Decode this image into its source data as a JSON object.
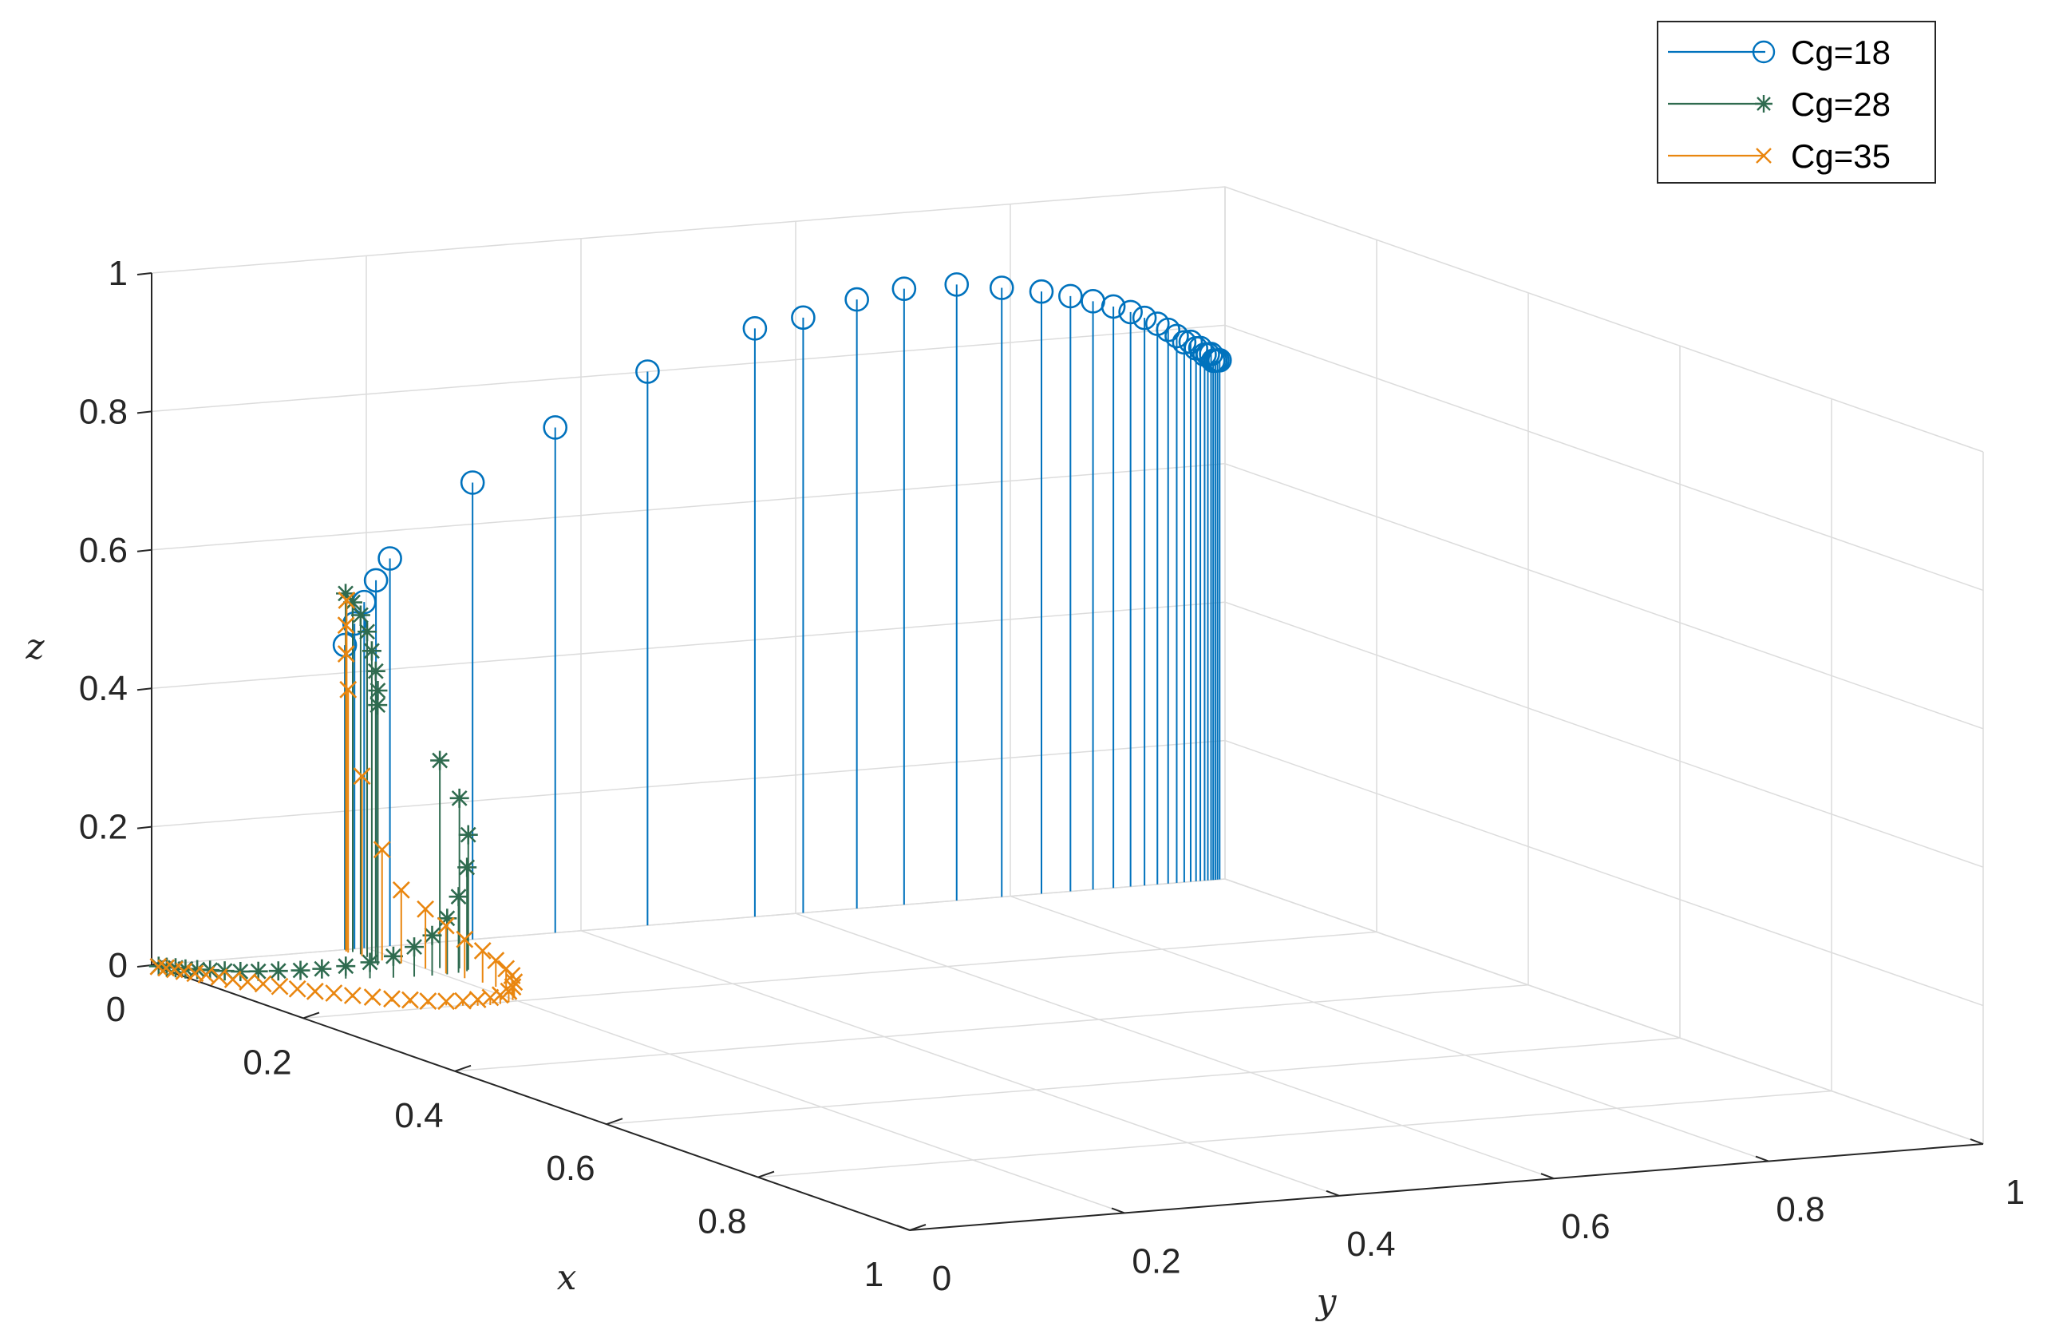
{
  "chart_data": {
    "type": "stem3",
    "xlabel": "x",
    "ylabel": "y",
    "zlabel": "z",
    "xlim": [
      0,
      1
    ],
    "ylim": [
      0,
      1
    ],
    "zlim": [
      0,
      1
    ],
    "x_ticks": [
      "0",
      "0.2",
      "0.4",
      "0.6",
      "0.8",
      "1"
    ],
    "y_ticks": [
      "0",
      "0.2",
      "0.4",
      "0.6",
      "0.8",
      "1"
    ],
    "z_ticks": [
      "0",
      "0.2",
      "0.4",
      "0.6",
      "0.8",
      "1"
    ],
    "grid": true,
    "legend_position": "top-right",
    "series": [
      {
        "name": "Cg=18",
        "color": "#0072BD",
        "marker": "circle",
        "points": [
          [
            0.0,
            0.18,
            0.44
          ],
          [
            0.0,
            0.189,
            0.47
          ],
          [
            0.0,
            0.198,
            0.5
          ],
          [
            0.0,
            0.209,
            0.53
          ],
          [
            0.0,
            0.222,
            0.56
          ],
          [
            0.0,
            0.299,
            0.66
          ],
          [
            0.0,
            0.376,
            0.73
          ],
          [
            0.0,
            0.462,
            0.8
          ],
          [
            0.0,
            0.562,
            0.85
          ],
          [
            0.0,
            0.607,
            0.86
          ],
          [
            0.0,
            0.657,
            0.88
          ],
          [
            0.0,
            0.701,
            0.89
          ],
          [
            0.0,
            0.75,
            0.89
          ],
          [
            0.0,
            0.792,
            0.88
          ],
          [
            0.0,
            0.829,
            0.87
          ],
          [
            0.0,
            0.856,
            0.86
          ],
          [
            0.0,
            0.877,
            0.85
          ],
          [
            0.0,
            0.896,
            0.84
          ],
          [
            0.0,
            0.912,
            0.83
          ],
          [
            0.0,
            0.925,
            0.82
          ],
          [
            0.0,
            0.937,
            0.81
          ],
          [
            0.0,
            0.947,
            0.8
          ],
          [
            0.0,
            0.955,
            0.79
          ],
          [
            0.0,
            0.962,
            0.78
          ],
          [
            0.0,
            0.968,
            0.78
          ],
          [
            0.0,
            0.973,
            0.77
          ],
          [
            0.0,
            0.977,
            0.77
          ],
          [
            0.0,
            0.981,
            0.76
          ],
          [
            0.0,
            0.984,
            0.76
          ],
          [
            0.0,
            0.987,
            0.76
          ],
          [
            0.0,
            0.989,
            0.75
          ],
          [
            0.0,
            0.991,
            0.75
          ],
          [
            0.0,
            0.993,
            0.75
          ],
          [
            0.0,
            0.995,
            0.75
          ]
        ]
      },
      {
        "name": "Cg=28",
        "color": "#2F6B4F",
        "marker": "asterisk",
        "points": [
          [
            0.005,
            0.003,
            0.0
          ],
          [
            0.01,
            0.007,
            0.0
          ],
          [
            0.016,
            0.011,
            0.001
          ],
          [
            0.022,
            0.016,
            0.001
          ],
          [
            0.029,
            0.022,
            0.002
          ],
          [
            0.036,
            0.029,
            0.003
          ],
          [
            0.044,
            0.037,
            0.004
          ],
          [
            0.052,
            0.046,
            0.005
          ],
          [
            0.06,
            0.057,
            0.007
          ],
          [
            0.068,
            0.07,
            0.009
          ],
          [
            0.076,
            0.085,
            0.011
          ],
          [
            0.083,
            0.1,
            0.014
          ],
          [
            0.089,
            0.118,
            0.018
          ],
          [
            0.094,
            0.137,
            0.023
          ],
          [
            0.098,
            0.156,
            0.031
          ],
          [
            0.1,
            0.174,
            0.043
          ],
          [
            0.101,
            0.19,
            0.058
          ],
          [
            0.101,
            0.204,
            0.081
          ],
          [
            0.099,
            0.216,
            0.11
          ],
          [
            0.096,
            0.226,
            0.15
          ],
          [
            0.092,
            0.23,
            0.195
          ],
          [
            0.086,
            0.226,
            0.246
          ],
          [
            0.08,
            0.212,
            0.3
          ],
          [
            0.056,
            0.171,
            0.376
          ],
          [
            0.052,
            0.174,
            0.395
          ],
          [
            0.045,
            0.177,
            0.42
          ],
          [
            0.037,
            0.179,
            0.446
          ],
          [
            0.028,
            0.181,
            0.47
          ],
          [
            0.018,
            0.182,
            0.49
          ],
          [
            0.009,
            0.181,
            0.505
          ],
          [
            0.001,
            0.18,
            0.515
          ]
        ]
      },
      {
        "name": "Cg=35",
        "color": "#E9860F",
        "marker": "cross",
        "points": [
          [
            0.006,
            0.002,
            0.0
          ],
          [
            0.012,
            0.005,
            0.0
          ],
          [
            0.019,
            0.008,
            0.0
          ],
          [
            0.027,
            0.011,
            0.0
          ],
          [
            0.036,
            0.015,
            0.0
          ],
          [
            0.045,
            0.019,
            0.001
          ],
          [
            0.055,
            0.024,
            0.001
          ],
          [
            0.066,
            0.029,
            0.001
          ],
          [
            0.077,
            0.035,
            0.001
          ],
          [
            0.089,
            0.041,
            0.002
          ],
          [
            0.101,
            0.048,
            0.002
          ],
          [
            0.113,
            0.056,
            0.002
          ],
          [
            0.125,
            0.064,
            0.002
          ],
          [
            0.137,
            0.073,
            0.003
          ],
          [
            0.149,
            0.082,
            0.003
          ],
          [
            0.161,
            0.092,
            0.004
          ],
          [
            0.171,
            0.103,
            0.004
          ],
          [
            0.181,
            0.113,
            0.005
          ],
          [
            0.189,
            0.124,
            0.005
          ],
          [
            0.196,
            0.136,
            0.006
          ],
          [
            0.201,
            0.148,
            0.007
          ],
          [
            0.205,
            0.159,
            0.009
          ],
          [
            0.206,
            0.17,
            0.011
          ],
          [
            0.205,
            0.18,
            0.013
          ],
          [
            0.202,
            0.19,
            0.016
          ],
          [
            0.196,
            0.198,
            0.019
          ],
          [
            0.188,
            0.205,
            0.022
          ],
          [
            0.178,
            0.21,
            0.027
          ],
          [
            0.166,
            0.213,
            0.032
          ],
          [
            0.151,
            0.214,
            0.038
          ],
          [
            0.135,
            0.213,
            0.046
          ],
          [
            0.117,
            0.209,
            0.056
          ],
          [
            0.098,
            0.205,
            0.069
          ],
          [
            0.078,
            0.2,
            0.086
          ],
          [
            0.056,
            0.193,
            0.106
          ],
          [
            0.042,
            0.185,
            0.16
          ],
          [
            0.024,
            0.179,
            0.26
          ],
          [
            0.01,
            0.176,
            0.38
          ],
          [
            0.006,
            0.177,
            0.43
          ],
          [
            0.003,
            0.179,
            0.47
          ],
          [
            0.001,
            0.181,
            0.505
          ]
        ]
      }
    ]
  }
}
